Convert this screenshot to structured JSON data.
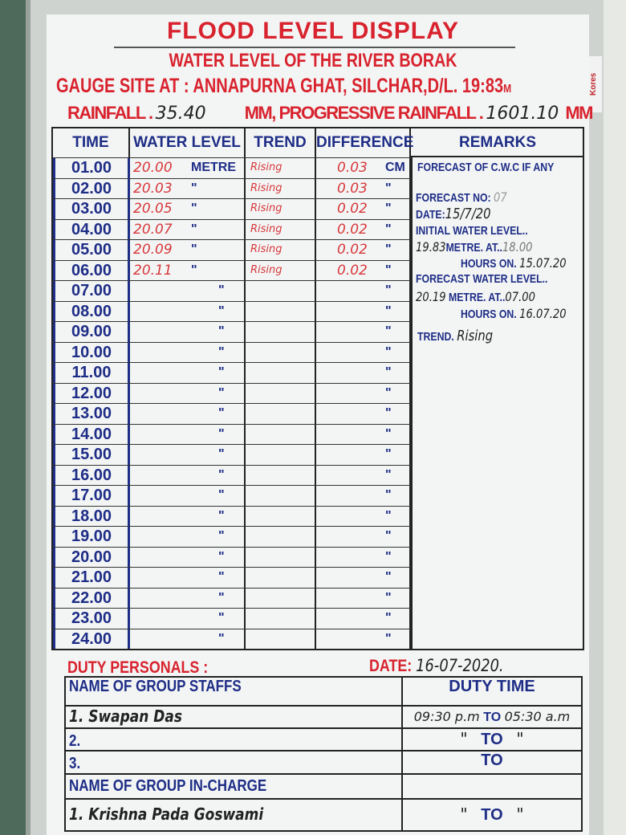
{
  "header": {
    "title": "FLOOD LEVEL DISPLAY",
    "subtitle": "WATER LEVEL OF THE RIVER BORAK",
    "gauge_site": "GAUGE SITE AT : ANNAPURNA GHAT, SILCHAR,D/L. 19:83",
    "gauge_unit": "M",
    "rainfall_label": "RAINFALL .",
    "rainfall_value": "35.40",
    "rainfall_unit": "MM, PROGRESSIVE RAINFALL .",
    "progressive_value": "1601.10",
    "progressive_unit": "MM"
  },
  "brand": "Kores",
  "table": {
    "columns": [
      "TIME",
      "WATER LEVEL",
      "TREND",
      "DIFFERENCE",
      "REMARKS"
    ],
    "rows": [
      {
        "time": "01.00",
        "water_level": "20.00",
        "wl_unit": "METRE",
        "trend": "Rising",
        "difference": "0.03",
        "diff_unit": "CM"
      },
      {
        "time": "02.00",
        "water_level": "20.03",
        "wl_unit": "\"",
        "trend": "Rising",
        "difference": "0.03",
        "diff_unit": "\""
      },
      {
        "time": "03.00",
        "water_level": "20.05",
        "wl_unit": "\"",
        "trend": "Rising",
        "difference": "0.02",
        "diff_unit": "\""
      },
      {
        "time": "04.00",
        "water_level": "20.07",
        "wl_unit": "\"",
        "trend": "Rising",
        "difference": "0.02",
        "diff_unit": "\""
      },
      {
        "time": "05.00",
        "water_level": "20.09",
        "wl_unit": "\"",
        "trend": "Rising",
        "difference": "0.02",
        "diff_unit": "\""
      },
      {
        "time": "06.00",
        "water_level": "20.11",
        "wl_unit": "\"",
        "trend": "Rising",
        "difference": "0.02",
        "diff_unit": "\""
      },
      {
        "time": "07.00",
        "water_level": "",
        "wl_unit": "\"",
        "trend": "",
        "difference": "",
        "diff_unit": "\""
      },
      {
        "time": "08.00",
        "water_level": "",
        "wl_unit": "\"",
        "trend": "",
        "difference": "",
        "diff_unit": "\""
      },
      {
        "time": "09.00",
        "water_level": "",
        "wl_unit": "\"",
        "trend": "",
        "difference": "",
        "diff_unit": "\""
      },
      {
        "time": "10.00",
        "water_level": "",
        "wl_unit": "\"",
        "trend": "",
        "difference": "",
        "diff_unit": "\""
      },
      {
        "time": "11.00",
        "water_level": "",
        "wl_unit": "\"",
        "trend": "",
        "difference": "",
        "diff_unit": "\""
      },
      {
        "time": "12.00",
        "water_level": "",
        "wl_unit": "\"",
        "trend": "",
        "difference": "",
        "diff_unit": "\""
      },
      {
        "time": "13.00",
        "water_level": "",
        "wl_unit": "\"",
        "trend": "",
        "difference": "",
        "diff_unit": "\""
      },
      {
        "time": "14.00",
        "water_level": "",
        "wl_unit": "\"",
        "trend": "",
        "difference": "",
        "diff_unit": "\""
      },
      {
        "time": "15.00",
        "water_level": "",
        "wl_unit": "\"",
        "trend": "",
        "difference": "",
        "diff_unit": "\""
      },
      {
        "time": "16.00",
        "water_level": "",
        "wl_unit": "\"",
        "trend": "",
        "difference": "",
        "diff_unit": "\""
      },
      {
        "time": "17.00",
        "water_level": "",
        "wl_unit": "\"",
        "trend": "",
        "difference": "",
        "diff_unit": "\""
      },
      {
        "time": "18.00",
        "water_level": "",
        "wl_unit": "\"",
        "trend": "",
        "difference": "",
        "diff_unit": "\""
      },
      {
        "time": "19.00",
        "water_level": "",
        "wl_unit": "\"",
        "trend": "",
        "difference": "",
        "diff_unit": "\""
      },
      {
        "time": "20.00",
        "water_level": "",
        "wl_unit": "\"",
        "trend": "",
        "difference": "",
        "diff_unit": "\""
      },
      {
        "time": "21.00",
        "water_level": "",
        "wl_unit": "\"",
        "trend": "",
        "difference": "",
        "diff_unit": "\""
      },
      {
        "time": "22.00",
        "water_level": "",
        "wl_unit": "\"",
        "trend": "",
        "difference": "",
        "diff_unit": "\""
      },
      {
        "time": "23.00",
        "water_level": "",
        "wl_unit": "\"",
        "trend": "",
        "difference": "",
        "diff_unit": "\""
      },
      {
        "time": "24.00",
        "water_level": "",
        "wl_unit": "\"",
        "trend": "",
        "difference": "",
        "diff_unit": "\""
      }
    ]
  },
  "remarks": {
    "heading": "FORECAST OF C.W.C IF ANY",
    "forecast_no_label": "FORECAST NO:",
    "forecast_no": "07",
    "date_label": "DATE:",
    "date": "15/7/20",
    "initial_label": "INITIAL WATER LEVEL..",
    "initial_level": "19.83",
    "metre_at": "METRE. AT..",
    "initial_time": "18.00",
    "hours_on": "HOURS ON.",
    "initial_date": "15.07.20",
    "forecast_label": "FORECAST WATER LEVEL..",
    "forecast_level": "20.19",
    "forecast_metre_at": "METRE. AT..",
    "forecast_time": "07.00",
    "forecast_hours_on": "HOURS ON.",
    "forecast_date": "16.07.20",
    "trend_label": "TREND.",
    "trend": "Rising"
  },
  "duty": {
    "title": "DUTY PERSONALS :",
    "date_label": "DATE:",
    "date": "16-07-2020.",
    "staff_header": "NAME OF GROUP STAFFS",
    "time_header": "DUTY TIME",
    "staff": [
      {
        "name": "1. Swapan Das",
        "from": "09:30 p.m",
        "to": "TO",
        "until": "05:30 a.m"
      },
      {
        "name": "2.",
        "from": "\"",
        "to": "TO",
        "until": "\""
      },
      {
        "name": "3.",
        "from": "",
        "to": "TO",
        "until": ""
      }
    ],
    "incharge_header": "NAME OF GROUP IN-CHARGE",
    "incharge": [
      {
        "name": "1. Krishna Pada Goswami",
        "from": "\"",
        "to": "TO",
        "until": "\""
      }
    ]
  }
}
